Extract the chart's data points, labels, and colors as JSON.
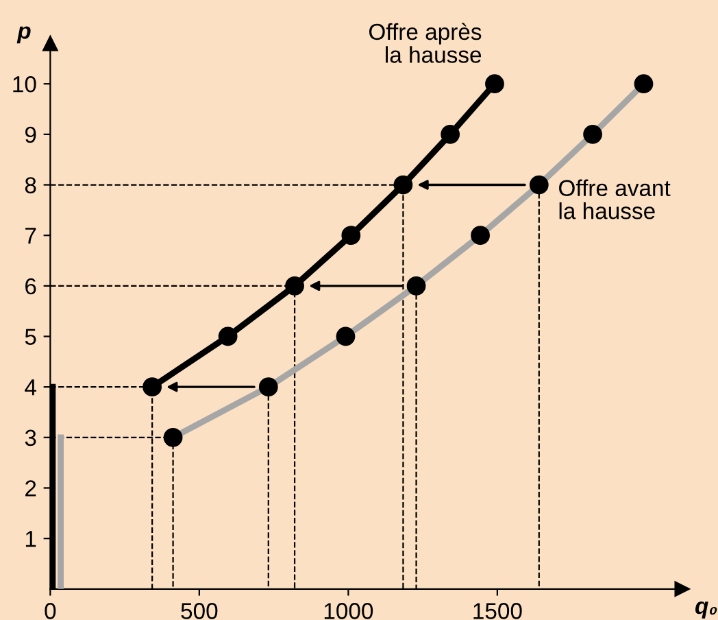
{
  "chart_data": {
    "type": "line",
    "xlabel": "q₀",
    "ylabel": "p",
    "xlim": [
      0,
      2120
    ],
    "ylim": [
      0,
      10.8
    ],
    "xticks": [
      0,
      500,
      1000,
      1500
    ],
    "yticks": [
      1,
      2,
      3,
      4,
      5,
      6,
      7,
      8,
      9,
      10
    ],
    "legend": "right",
    "marker": "circle",
    "line_style": "solid",
    "series": [
      {
        "name": "Offre après\nla hausse",
        "color": "#000000",
        "x": [
          342,
          596,
          820,
          1009,
          1184,
          1342,
          1491
        ],
        "values": [
          4,
          5,
          6,
          7,
          8,
          9,
          10
        ]
      },
      {
        "name": "Offre avant\nla hausse",
        "color": "#a6a6a6",
        "x": [
          412,
          732,
          991,
          1228,
          1443,
          1640,
          1820,
          1991
        ],
        "values": [
          3,
          4,
          5,
          6,
          7,
          8,
          9,
          10
        ]
      },
      {
        "color": "#000000",
        "x": [
          8,
          8
        ],
        "values": [
          0,
          4
        ],
        "marker": "none"
      },
      {
        "color": "#a6a6a6",
        "x": [
          35,
          35
        ],
        "values": [
          0,
          3
        ],
        "marker": "none"
      },
      {
        "color": "#000000",
        "marker": "none",
        "line_style": "dashed",
        "x": [
          0,
          412,
          412,
          null,
          0,
          342,
          342,
          null,
          732,
          732,
          null,
          0,
          820,
          820,
          null,
          1228,
          1228,
          null,
          0,
          1184,
          1184,
          null,
          1640,
          1640
        ],
        "values": [
          3,
          3,
          0,
          null,
          4,
          4,
          0,
          null,
          4,
          0,
          null,
          6,
          6,
          0,
          null,
          6,
          0,
          null,
          8,
          8,
          0,
          null,
          8,
          0
        ]
      }
    ]
  }
}
